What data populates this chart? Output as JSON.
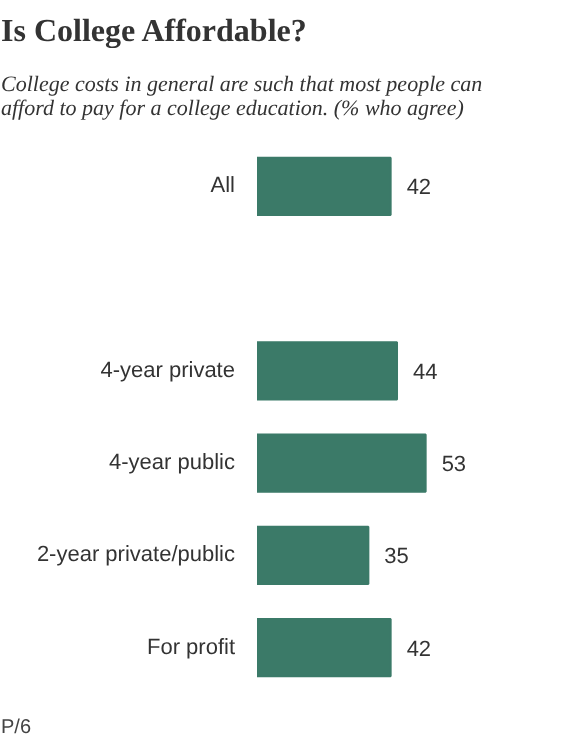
{
  "chart_data": {
    "type": "bar",
    "orientation": "horizontal",
    "title": "Is College Affordable?",
    "subtitle": "College costs in general are such that most people can\nafford to pay for a college education. (% who agree)",
    "categories": [
      "All",
      null,
      "4-year private",
      "4-year public",
      "2-year private/public",
      "For profit"
    ],
    "values": [
      42,
      null,
      44,
      53,
      35,
      42
    ],
    "color": "#3b7a68",
    "data_labels": true,
    "grid": false,
    "annotations": [
      "P/6"
    ]
  }
}
